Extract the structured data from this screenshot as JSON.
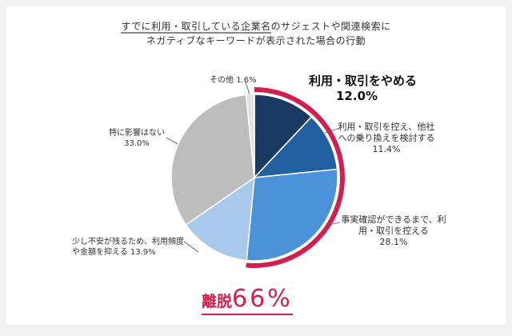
{
  "title": {
    "line1_underlined": "すでに利用・取引している企業名",
    "line1_rest": "のサジェストや関連検索に",
    "line2": "ネガティブなキーワードが表示された場合の行動"
  },
  "chart_data": {
    "type": "pie",
    "start": "top",
    "direction": "clockwise",
    "slices": [
      {
        "label": "利用・取引をやめる",
        "value": 12.0,
        "value_text": "12.0%",
        "color": "#1b3a63"
      },
      {
        "label": "利用・取引を控え、他社への乗り換えを検討する",
        "value": 11.4,
        "value_text": "11.4%",
        "color": "#215f9e"
      },
      {
        "label": "事実確認ができるまで、利用・取引を控える",
        "value": 28.1,
        "value_text": "28.1%",
        "color": "#4b92d8"
      },
      {
        "label": "少し不安が残るため、利用頻度や金額を抑える",
        "value": 13.9,
        "value_text": "13.9%",
        "color": "#a9c9ec"
      },
      {
        "label": "特に影響はない",
        "value": 33.0,
        "value_text": "33.0%",
        "color": "#bdbdbd"
      },
      {
        "label": "その他",
        "value": 1.6,
        "value_text": "1.6%",
        "color": "#e2e2e2"
      }
    ],
    "highlight_color": "#d11f4f"
  },
  "summary": {
    "label": "離脱",
    "value": "66%"
  }
}
